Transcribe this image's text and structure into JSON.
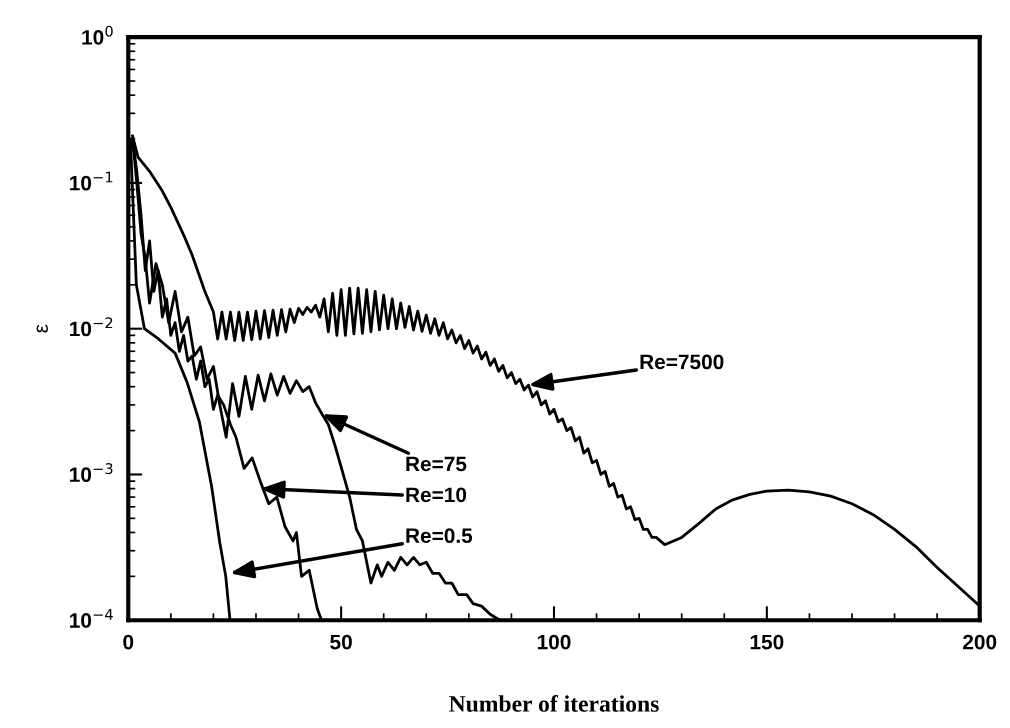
{
  "chart_data": {
    "type": "line",
    "xlabel": "Number of iterations",
    "ylabel": "ε",
    "log": "y",
    "xlim": [
      0,
      200
    ],
    "xticks": [
      0,
      50,
      100,
      150,
      200
    ],
    "ylim": [
      0.0001,
      1
    ],
    "yticks": [
      {
        "value": 1,
        "label": "10$^{0}$"
      },
      {
        "value": 0.1,
        "label": "10$^{−1}$"
      },
      {
        "value": 0.01,
        "label": "10$^{−2}$"
      },
      {
        "value": 0.001,
        "label": "10$^{−3}$"
      },
      {
        "value": 0.0001,
        "label": "10$^{−4}$"
      }
    ],
    "marker": "none",
    "line_style": "solid",
    "series": [
      {
        "color": "#000000",
        "x": [
          1,
          2.3,
          5,
          8,
          10,
          13,
          15,
          18,
          20,
          21,
          22,
          23,
          24,
          25,
          26,
          27,
          28,
          29,
          30,
          31,
          32,
          33,
          34,
          35,
          36,
          37,
          38,
          39,
          40,
          41,
          42,
          43,
          44,
          45,
          46,
          47,
          48,
          49,
          50,
          51,
          52,
          53,
          54,
          55,
          56,
          57,
          58,
          59,
          60,
          61,
          62,
          63,
          64,
          65,
          66,
          67,
          68,
          69,
          70,
          71,
          72,
          73,
          74,
          75,
          76,
          77,
          78,
          79,
          80,
          81,
          82,
          83,
          84,
          85,
          86,
          87,
          88,
          89,
          90,
          91,
          92,
          93,
          94,
          95,
          96,
          97,
          98,
          99,
          100,
          101,
          102,
          103,
          104,
          105,
          106,
          107,
          108,
          109,
          110,
          111,
          112,
          113,
          114,
          115,
          116,
          117,
          118,
          119,
          120,
          121,
          122,
          123,
          124,
          126,
          130,
          134,
          138,
          142,
          146,
          150,
          155,
          160,
          165,
          170,
          175,
          180,
          185,
          190,
          195,
          200
        ],
        "values": [
          0.21,
          0.15,
          0.12,
          0.088,
          0.068,
          0.044,
          0.032,
          0.018,
          0.013,
          0.0085,
          0.013,
          0.0085,
          0.013,
          0.0083,
          0.013,
          0.0083,
          0.013,
          0.0084,
          0.0132,
          0.0085,
          0.0133,
          0.0087,
          0.0134,
          0.009,
          0.0135,
          0.0095,
          0.0136,
          0.011,
          0.0138,
          0.0125,
          0.014,
          0.013,
          0.0145,
          0.012,
          0.016,
          0.0095,
          0.0175,
          0.009,
          0.0185,
          0.009,
          0.019,
          0.0092,
          0.019,
          0.0093,
          0.0185,
          0.0095,
          0.018,
          0.0098,
          0.017,
          0.01,
          0.016,
          0.01,
          0.015,
          0.0102,
          0.0142,
          0.0098,
          0.0132,
          0.0096,
          0.0124,
          0.0093,
          0.0117,
          0.009,
          0.011,
          0.0085,
          0.0098,
          0.008,
          0.009,
          0.0073,
          0.0083,
          0.0068,
          0.0076,
          0.0062,
          0.0069,
          0.0056,
          0.0062,
          0.0051,
          0.0056,
          0.0046,
          0.005,
          0.0042,
          0.0045,
          0.0038,
          0.0041,
          0.0034,
          0.0037,
          0.003,
          0.0032,
          0.0026,
          0.0028,
          0.0023,
          0.0024,
          0.002,
          0.0021,
          0.0017,
          0.0018,
          0.0014,
          0.0015,
          0.0012,
          0.00125,
          0.001,
          0.00105,
          0.00083,
          0.00087,
          0.0007,
          0.00072,
          0.00058,
          0.0006,
          0.00049,
          0.0005,
          0.00042,
          0.00042,
          0.00037,
          0.00037,
          0.00033,
          0.00037,
          0.00046,
          0.00058,
          0.00067,
          0.00073,
          0.00077,
          0.00078,
          0.00076,
          0.00071,
          0.00063,
          0.00053,
          0.00042,
          0.00032,
          0.00023,
          0.00017,
          0.000125
        ]
      },
      {
        "color": "#000000",
        "x": [
          1,
          2,
          3,
          4,
          5,
          6.5,
          8,
          9.5,
          11,
          12.5,
          14,
          15.5,
          17,
          18.5,
          20,
          21.5,
          23,
          24.5,
          26,
          27.5,
          29,
          30.5,
          32,
          33.5,
          35,
          36.5,
          38,
          39.5,
          41,
          42.5,
          44,
          45.5,
          47,
          48.5,
          50.5,
          52,
          53.6,
          55,
          57,
          58.5,
          59.5,
          61,
          62.5,
          64,
          65.5,
          67,
          68.5,
          70,
          71.5,
          73,
          74.5,
          76,
          77.5,
          79.5,
          81,
          83,
          85,
          87.3
        ],
        "values": [
          0.2,
          0.1,
          0.045,
          0.03,
          0.015,
          0.028,
          0.02,
          0.011,
          0.018,
          0.0095,
          0.012,
          0.0065,
          0.0075,
          0.0045,
          0.0055,
          0.003,
          0.0018,
          0.0042,
          0.0025,
          0.0047,
          0.0028,
          0.0048,
          0.0032,
          0.0049,
          0.0035,
          0.0047,
          0.0036,
          0.0044,
          0.0037,
          0.004,
          0.0031,
          0.0026,
          0.0022,
          0.0016,
          0.001,
          0.0007,
          0.00042,
          0.00035,
          0.00018,
          0.00024,
          0.0002,
          0.00025,
          0.00022,
          0.00027,
          0.00024,
          0.00027,
          0.00024,
          0.00025,
          0.00021,
          0.00021,
          0.00018,
          0.00018,
          0.00015,
          0.00015,
          0.00013,
          0.000125,
          0.00011,
          0.0001
        ]
      },
      {
        "color": "#000000",
        "x": [
          1,
          2,
          3,
          4,
          5,
          6,
          7,
          8,
          9,
          10,
          11,
          12,
          13,
          14,
          15,
          16,
          17,
          18,
          19,
          20,
          21,
          22.4,
          24,
          25.3,
          27.2,
          29.1,
          31,
          33,
          34.9,
          36.8,
          38.7,
          39.5,
          40.7,
          42.5,
          44.4,
          45.4
        ],
        "values": [
          0.2,
          0.12,
          0.06,
          0.025,
          0.04,
          0.018,
          0.025,
          0.012,
          0.016,
          0.009,
          0.011,
          0.007,
          0.009,
          0.006,
          0.0065,
          0.0045,
          0.006,
          0.004,
          0.0045,
          0.0028,
          0.0035,
          0.003,
          0.0022,
          0.0018,
          0.0011,
          0.0013,
          0.0009,
          0.00063,
          0.0007,
          0.00044,
          0.00035,
          0.0004,
          0.0002,
          0.00022,
          0.00012,
          0.0001
        ]
      },
      {
        "color": "#000000",
        "x": [
          0.5,
          1.9,
          3.8,
          7.1,
          11,
          13.8,
          16.7,
          19.6,
          21.5,
          22.9,
          23.9
        ],
        "values": [
          0.2,
          0.02,
          0.01,
          0.0085,
          0.0068,
          0.0043,
          0.0023,
          0.00082,
          0.00034,
          0.0002,
          0.0001
        ]
      }
    ],
    "annotations": [
      {
        "text": "Re=7500",
        "x": 94,
        "y": 0.0041
      },
      {
        "text": "Re=75",
        "x": 45.5,
        "y": 0.0026
      },
      {
        "text": "Re=10",
        "x": 31,
        "y": 0.0008
      },
      {
        "text": "Re=0.5",
        "x": 23.9,
        "y": 0.00021
      }
    ]
  }
}
